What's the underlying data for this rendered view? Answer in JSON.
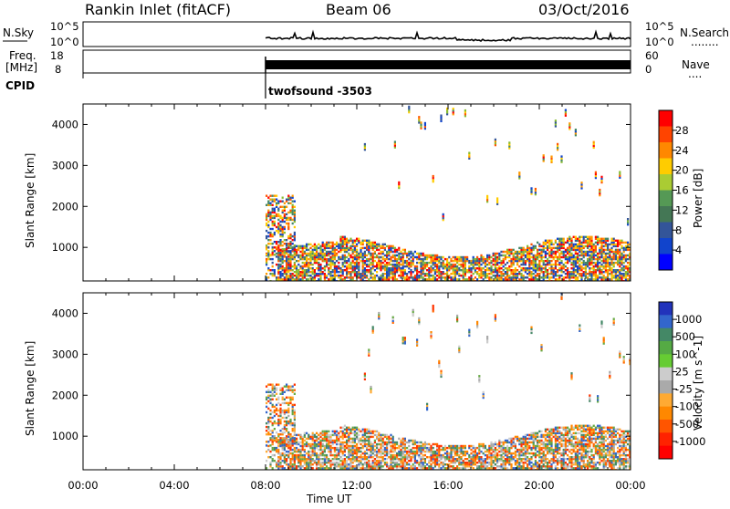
{
  "header": {
    "station": "Rankin Inlet (fitACF)",
    "beam": "Beam 06",
    "date": "03/Oct/2016"
  },
  "top_panels": {
    "nsky_label": "N.Sky",
    "nsky_ticks": [
      "10^5",
      "10^0"
    ],
    "nsearch_label": "N.Search",
    "nsearch_dots": "........",
    "freq_label_1": "Freq.",
    "freq_label_2": "[MHz]",
    "freq_ticks": [
      "18",
      "8"
    ],
    "nave_label": "Nave",
    "nave_dots": "....",
    "nave_ticks": [
      "60",
      "0"
    ],
    "cpid_label": "CPID",
    "cpid_value": "twofsound -3503"
  },
  "chart_data": [
    {
      "type": "heatmap",
      "name": "power",
      "ylabel": "Slant Range [km]",
      "yticks": [
        "4000",
        "3000",
        "2000",
        "1000"
      ],
      "ylim": [
        180,
        4500
      ],
      "colorbar_label": "Power [dB]",
      "colorbar_ticks": [
        "28",
        "24",
        "20",
        "16",
        "12",
        "8",
        "4"
      ],
      "colorbar_colors": [
        "#ff0000",
        "#ff4400",
        "#ff8800",
        "#ffcc00",
        "#aacc33",
        "#559955",
        "#447755",
        "#335599",
        "#1144cc",
        "#0000ff"
      ]
    },
    {
      "type": "heatmap",
      "name": "velocity",
      "ylabel": "Slant Range [km]",
      "yticks": [
        "4000",
        "3000",
        "2000",
        "1000"
      ],
      "ylim": [
        180,
        4500
      ],
      "colorbar_label": "Velocity [m s^-1]",
      "colorbar_ticks": [
        "1000",
        "500",
        "100",
        "25",
        "-25",
        "-100",
        "-500",
        "-1000"
      ],
      "colorbar_colors": [
        "#2233bb",
        "#3366cc",
        "#448866",
        "#55aa44",
        "#66cc33",
        "#cccccc",
        "#aaaaaa",
        "#ffaa33",
        "#ff8800",
        "#ff5500",
        "#ff2200",
        "#ff0000"
      ]
    }
  ],
  "xaxis": {
    "ticks": [
      "00:00",
      "04:00",
      "08:00",
      "12:00",
      "16:00",
      "20:00",
      "00:00"
    ],
    "label": "Time UT",
    "start_hour": 0,
    "end_hour": 24,
    "data_start_hour": 8
  }
}
